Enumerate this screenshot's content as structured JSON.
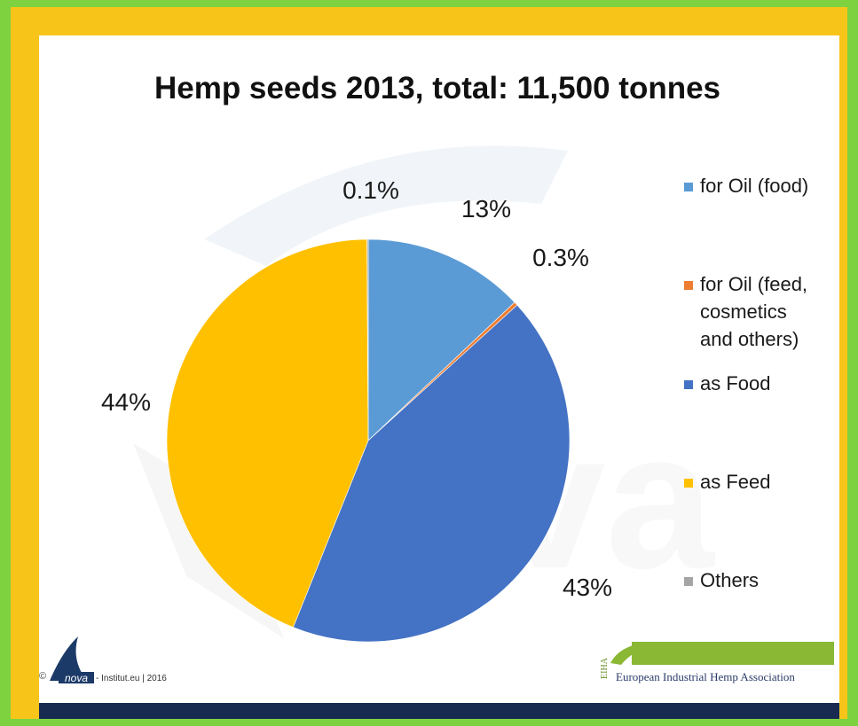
{
  "chart_data": {
    "type": "pie",
    "title": "Hemp seeds 2013, total: 11,500 tonnes",
    "categories": [
      "for Oil (food)",
      "for Oil (feed, cosmetics and others)",
      "as Food",
      "as Feed",
      "Others"
    ],
    "legend_lines": [
      [
        "for Oil (food)"
      ],
      [
        "for Oil (feed,",
        "cosmetics",
        "and others)"
      ],
      [
        "as Food"
      ],
      [
        "as Feed"
      ],
      [
        "Others"
      ]
    ],
    "values": [
      13,
      0.3,
      43,
      44,
      0.1
    ],
    "labels": [
      "13%",
      "0.3%",
      "43%",
      "44%",
      "0.1%"
    ],
    "colors": [
      "#5b9bd5",
      "#ed7d31",
      "#4472c4",
      "#ffc000",
      "#a5a5a5"
    ],
    "legend_position": "right"
  },
  "footer": {
    "copyright_symbol": "©",
    "logo_text": "nova",
    "credit": "- Institut.eu | 2016",
    "eiha_acronym": "EIHA",
    "eiha_name": "European Industrial Hemp Association"
  }
}
